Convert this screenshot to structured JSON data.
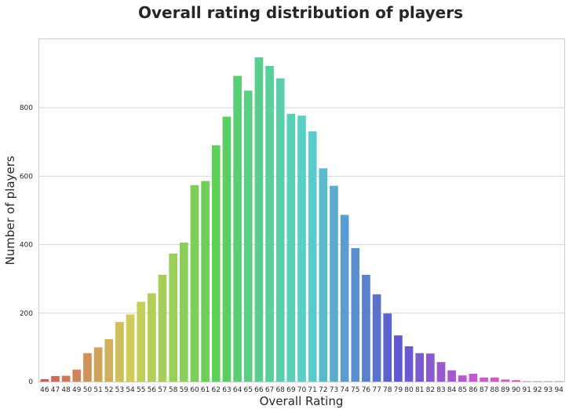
{
  "chart_data": {
    "type": "bar",
    "title": "Overall rating distribution of players",
    "xlabel": "Overall Rating",
    "ylabel": "Number of players",
    "ylim": [
      0,
      1000
    ],
    "yticks": [
      0,
      200,
      400,
      600,
      800
    ],
    "grid": "horizontal",
    "legend": "none",
    "categories": [
      "46",
      "47",
      "48",
      "49",
      "50",
      "51",
      "52",
      "53",
      "54",
      "55",
      "56",
      "57",
      "58",
      "59",
      "60",
      "61",
      "62",
      "63",
      "64",
      "65",
      "66",
      "67",
      "68",
      "69",
      "70",
      "71",
      "72",
      "73",
      "74",
      "75",
      "76",
      "77",
      "78",
      "79",
      "80",
      "81",
      "82",
      "83",
      "84",
      "85",
      "86",
      "87",
      "88",
      "89",
      "90",
      "91",
      "92",
      "93",
      "94"
    ],
    "values": [
      7,
      16,
      17,
      35,
      83,
      100,
      124,
      174,
      196,
      233,
      258,
      312,
      374,
      406,
      574,
      586,
      690,
      774,
      893,
      850,
      947,
      922,
      886,
      782,
      777,
      731,
      623,
      572,
      487,
      390,
      312,
      255,
      199,
      135,
      103,
      83,
      82,
      57,
      33,
      18,
      23,
      12,
      12,
      6,
      4,
      1,
      1,
      1,
      1
    ],
    "palette": "hls"
  }
}
